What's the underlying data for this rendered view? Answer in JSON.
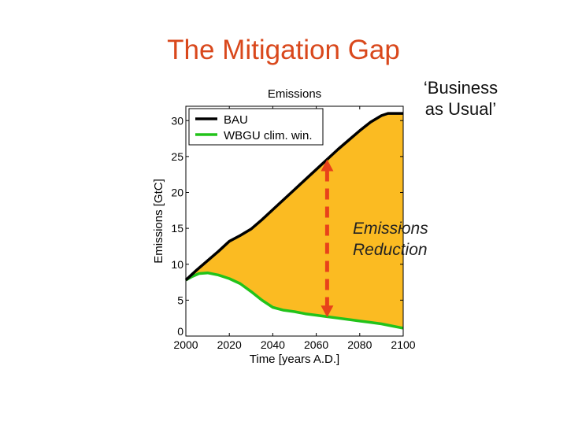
{
  "slide": {
    "title": "The Mitigation Gap",
    "callout_line1": "‘Business",
    "callout_line2": "as Usual’",
    "reduction_line1": "Emissions",
    "reduction_line2": "Reduction"
  },
  "colors": {
    "title": "#d9481c",
    "fill": "#fbbb22",
    "bau": "#000000",
    "wbgu": "#22c31a",
    "arrow": "#e8421a"
  },
  "chart_data": {
    "type": "area",
    "title": "Emissions",
    "xlabel": "Time [years A.D.]",
    "ylabel": "Emissions [GtC]",
    "xlim": [
      2000,
      2100
    ],
    "ylim": [
      0,
      32
    ],
    "x_ticks": [
      2000,
      2020,
      2040,
      2060,
      2080,
      2100
    ],
    "y_ticks": [
      0,
      5,
      10,
      15,
      20,
      25,
      30
    ],
    "grid": false,
    "legend_position": "top-left",
    "series": [
      {
        "name": "BAU",
        "x": [
          2000,
          2005,
          2010,
          2015,
          2020,
          2025,
          2030,
          2035,
          2040,
          2045,
          2050,
          2055,
          2060,
          2065,
          2070,
          2075,
          2080,
          2085,
          2090,
          2093,
          2095,
          2100
        ],
        "y": [
          7.8,
          9.2,
          10.5,
          11.8,
          13.2,
          14.0,
          14.9,
          16.2,
          17.6,
          19.0,
          20.4,
          21.8,
          23.2,
          24.6,
          26.0,
          27.3,
          28.6,
          29.8,
          30.7,
          31.0,
          31.0,
          31.0
        ]
      },
      {
        "name": "WBGU clim. win.",
        "x": [
          2000,
          2003,
          2006,
          2010,
          2015,
          2020,
          2025,
          2030,
          2035,
          2040,
          2045,
          2050,
          2055,
          2060,
          2065,
          2070,
          2075,
          2080,
          2085,
          2090,
          2095,
          2100
        ],
        "y": [
          7.8,
          8.3,
          8.7,
          8.8,
          8.5,
          8.0,
          7.3,
          6.2,
          5.0,
          4.0,
          3.6,
          3.4,
          3.1,
          2.9,
          2.7,
          2.5,
          2.3,
          2.1,
          1.9,
          1.7,
          1.4,
          1.1
        ]
      }
    ],
    "fill_between": "BAU and WBGU clim. win.",
    "annotation": {
      "type": "double-arrow",
      "x": 2065,
      "from": 2.6,
      "to": 24.6
    }
  }
}
